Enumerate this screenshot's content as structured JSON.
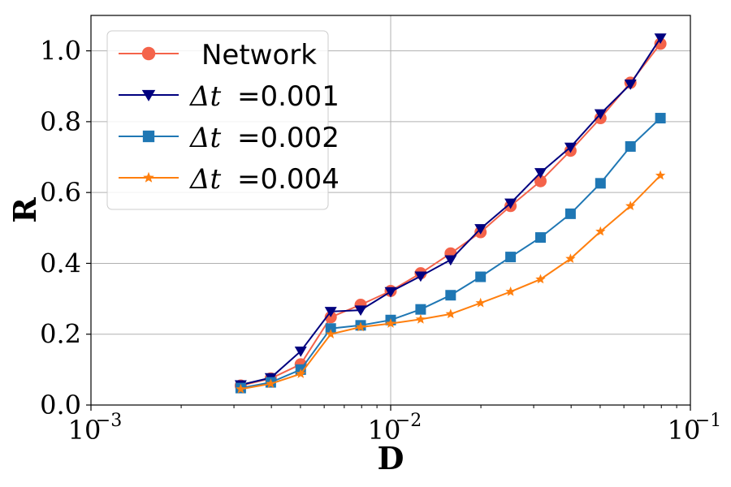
{
  "chart_data": {
    "type": "line",
    "xlabel": "D",
    "ylabel": "R",
    "xscale": "log",
    "xlim": [
      0.001,
      0.1
    ],
    "ylim": [
      0.0,
      1.1
    ],
    "grid": true,
    "legend_position": "top-left",
    "x_ticks": [
      {
        "base": "10",
        "exp": "−3",
        "value": 0.001
      },
      {
        "base": "10",
        "exp": "−2",
        "value": 0.01
      },
      {
        "base": "10",
        "exp": "−1",
        "value": 0.1
      }
    ],
    "y_ticks": [
      "0.0",
      "0.2",
      "0.4",
      "0.6",
      "0.8",
      "1.0"
    ],
    "x": [
      0.00316,
      0.00398,
      0.00501,
      0.00631,
      0.00794,
      0.01,
      0.01259,
      0.01585,
      0.01995,
      0.02512,
      0.03162,
      0.03981,
      0.05012,
      0.0631,
      0.07943
    ],
    "series": [
      {
        "name": "Network",
        "label_prefix": "",
        "label_value": "Network",
        "color": "#f4634a",
        "marker": "circle",
        "values": [
          0.055,
          0.075,
          0.115,
          0.248,
          0.283,
          0.322,
          0.372,
          0.428,
          0.488,
          0.562,
          0.632,
          0.718,
          0.81,
          0.91,
          1.02
        ]
      },
      {
        "name": "Δt=0.001",
        "label_prefix": "Δt",
        "label_value": "=0.001",
        "color": "#00007f",
        "marker": "triangle-down",
        "values": [
          0.057,
          0.077,
          0.152,
          0.264,
          0.268,
          0.32,
          0.364,
          0.41,
          0.498,
          0.57,
          0.656,
          0.728,
          0.822,
          0.906,
          1.036
        ]
      },
      {
        "name": "Δt=0.002",
        "label_prefix": "Δt",
        "label_value": "=0.002",
        "color": "#1f77b4",
        "marker": "square",
        "values": [
          0.048,
          0.064,
          0.1,
          0.216,
          0.225,
          0.24,
          0.27,
          0.31,
          0.362,
          0.418,
          0.473,
          0.54,
          0.626,
          0.73,
          0.81
        ]
      },
      {
        "name": "Δt=0.004",
        "label_prefix": "Δt",
        "label_value": "=0.004",
        "color": "#ff7f0e",
        "marker": "star",
        "values": [
          0.045,
          0.06,
          0.088,
          0.2,
          0.22,
          0.23,
          0.242,
          0.257,
          0.288,
          0.32,
          0.355,
          0.413,
          0.49,
          0.562,
          0.648
        ]
      }
    ]
  }
}
